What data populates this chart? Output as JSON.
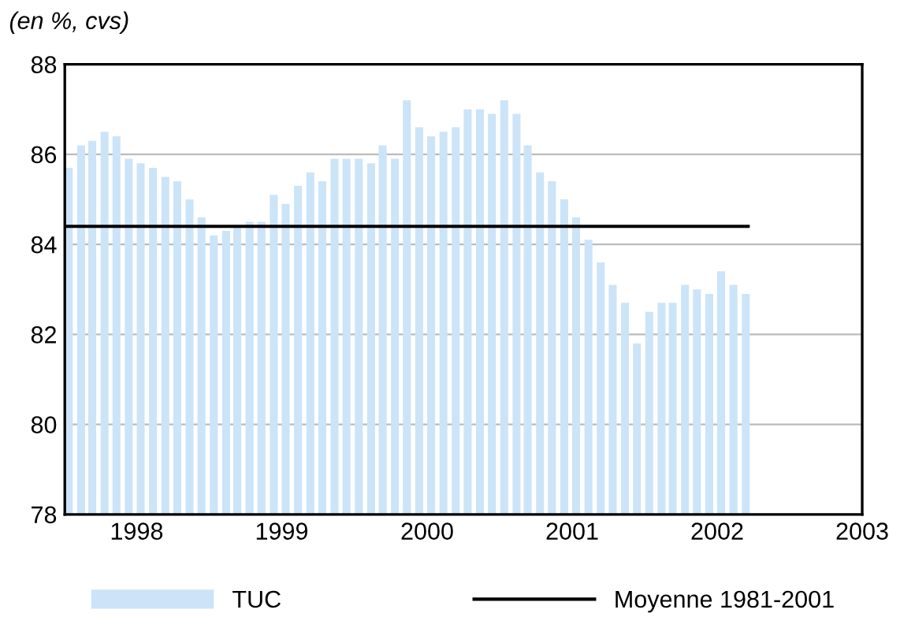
{
  "chart_data": {
    "type": "bar",
    "ylabel": "(en %, cvs)",
    "x": [
      "1998-01",
      "1998-02",
      "1998-03",
      "1998-04",
      "1998-05",
      "1998-06",
      "1998-07",
      "1998-08",
      "1998-09",
      "1998-10",
      "1998-11",
      "1998-12",
      "1999-01",
      "1999-02",
      "1999-03",
      "1999-04",
      "1999-05",
      "1999-06",
      "1999-07",
      "1999-08",
      "1999-09",
      "1999-10",
      "1999-11",
      "1999-12",
      "2000-01",
      "2000-02",
      "2000-03",
      "2000-04",
      "2000-05",
      "2000-06",
      "2000-07",
      "2000-08",
      "2000-09",
      "2000-10",
      "2000-11",
      "2000-12",
      "2001-01",
      "2001-02",
      "2001-03",
      "2001-04",
      "2001-05",
      "2001-06",
      "2001-07",
      "2001-08",
      "2001-09",
      "2001-10",
      "2001-11",
      "2001-12",
      "2002-01",
      "2002-02",
      "2002-03",
      "2002-04",
      "2002-05",
      "2002-06",
      "2002-07",
      "2002-08",
      "2002-09"
    ],
    "series": [
      {
        "name": "TUC",
        "color": "#cce4f8",
        "values": [
          85.7,
          86.2,
          86.3,
          86.5,
          86.4,
          85.9,
          85.8,
          85.7,
          85.5,
          85.4,
          85.0,
          84.6,
          84.2,
          84.3,
          84.4,
          84.5,
          84.5,
          85.1,
          84.9,
          85.3,
          85.6,
          85.4,
          85.9,
          85.9,
          85.9,
          85.8,
          86.2,
          85.9,
          87.2,
          86.6,
          86.4,
          86.5,
          86.6,
          87.0,
          87.0,
          86.9,
          87.2,
          86.9,
          86.2,
          85.6,
          85.4,
          85.0,
          84.6,
          84.1,
          83.6,
          83.1,
          82.7,
          81.8,
          82.5,
          82.7,
          82.7,
          83.1,
          83.0,
          82.9,
          83.4,
          83.1,
          82.9
        ]
      }
    ],
    "ref_lines": [
      {
        "axis": "y",
        "value": 84.4,
        "label": "Moyenne 1981-2001",
        "color": "#000000"
      }
    ],
    "xlim": [
      "1998-01-01",
      "2003-07-01"
    ],
    "xticks": [
      {
        "value": "1998-07-01",
        "label": "1998"
      },
      {
        "value": "1999-07-01",
        "label": "1999"
      },
      {
        "value": "2000-07-01",
        "label": "2000"
      },
      {
        "value": "2001-07-01",
        "label": "2001"
      },
      {
        "value": "2002-07-01",
        "label": "2002"
      },
      {
        "value": "2003-07-01",
        "label": "2003"
      }
    ],
    "ylim": [
      78,
      88
    ],
    "yticks": [
      78,
      80,
      82,
      84,
      86,
      88
    ],
    "grid": "y",
    "legend": "bottom"
  }
}
